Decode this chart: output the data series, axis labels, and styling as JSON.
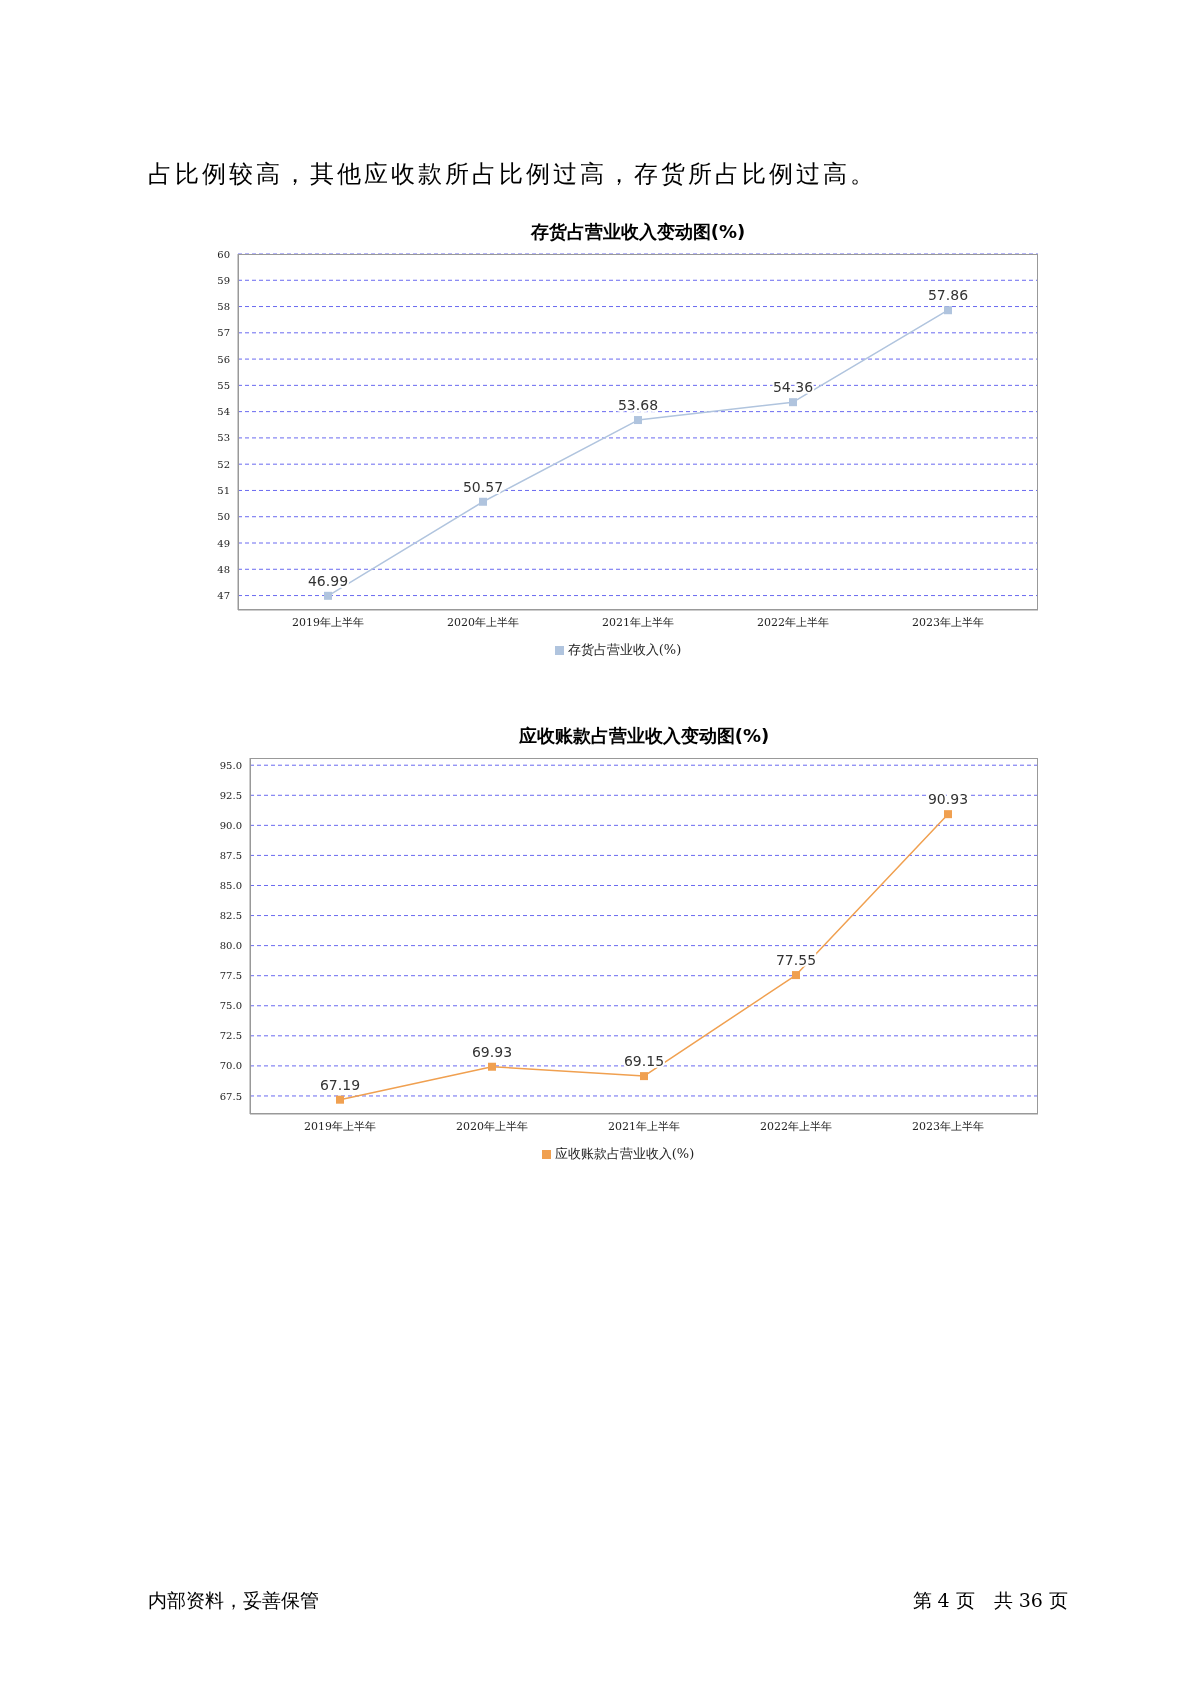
{
  "chart_data": [
    {
      "type": "line",
      "title": "存货占营业收入变动图(%)",
      "annotations": [
        "占比例较高，其他应收款所占比例过高，存货所占比例过高。"
      ],
      "categories": [
        "2019年上半年",
        "2020年上半年",
        "2021年上半年",
        "2022年上半年",
        "2023年上半年"
      ],
      "series": [
        {
          "name": "存货占营业收入(%)",
          "color": "#b0c4de",
          "values": [
            46.99,
            50.57,
            53.68,
            54.36,
            57.86
          ]
        }
      ],
      "ylim": [
        46.45,
        60
      ],
      "yticks": [
        47,
        48,
        49,
        50,
        51,
        52,
        53,
        54,
        55,
        56,
        57,
        58,
        59,
        60
      ],
      "grid": "y",
      "legend": "bottom",
      "marker": "square",
      "line_style": "solid",
      "data_labels": true
    },
    {
      "type": "line",
      "title": "应收账款占营业收入变动图(%)",
      "annotations": [
        "内部资料，妥善保管",
        "第 4 页　共 36 页"
      ],
      "categories": [
        "2019年上半年",
        "2020年上半年",
        "2021年上半年",
        "2022年上半年",
        "2023年上半年"
      ],
      "series": [
        {
          "name": "应收账款占营业收入(%)",
          "color": "#f0a050",
          "values": [
            67.19,
            69.93,
            69.15,
            77.55,
            90.93
          ]
        }
      ],
      "ylim": [
        66,
        95.6
      ],
      "yticks": [
        {
          "value": 67.5,
          "label": "67.5"
        },
        {
          "value": 70,
          "label": "70.0"
        },
        {
          "value": 72.5,
          "label": "72.5"
        },
        {
          "value": 75,
          "label": "75.0"
        },
        {
          "value": 77.5,
          "label": "77.5"
        },
        {
          "value": 80,
          "label": "80.0"
        },
        {
          "value": 82.5,
          "label": "82.5"
        },
        {
          "value": 85,
          "label": "85.0"
        },
        {
          "value": 87.5,
          "label": "87.5"
        },
        {
          "value": 90,
          "label": "90.0"
        },
        {
          "value": 92.5,
          "label": "92.5"
        },
        {
          "value": 95,
          "label": "95.0"
        }
      ],
      "grid": "y",
      "legend": "bottom",
      "marker": "square",
      "line_style": "solid",
      "data_labels": true
    }
  ]
}
